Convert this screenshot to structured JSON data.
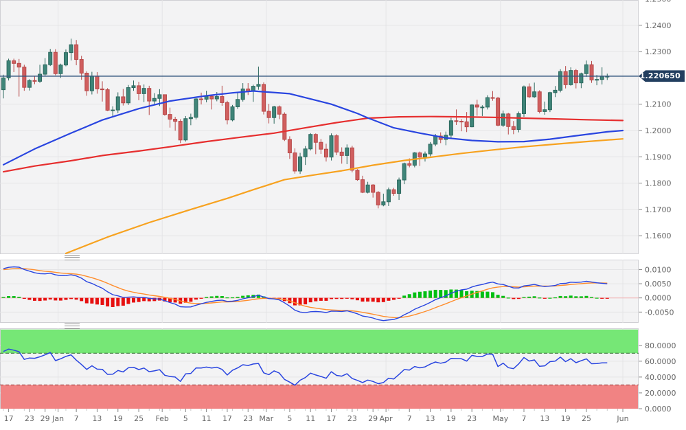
{
  "price_badge": {
    "label": "1.220650",
    "bg": "#223e5f"
  },
  "chart_data": [
    {
      "type": "candlestick",
      "panel": "price",
      "ylim": [
        1.153,
        1.2496
      ],
      "yticks": [
        1.25,
        1.24,
        1.23,
        1.22,
        1.21,
        1.2,
        1.19,
        1.18,
        1.17,
        1.16
      ],
      "label_skip": [
        1.22
      ],
      "current_price": 1.22065,
      "x_labels": [
        [
          "17",
          1
        ],
        [
          "23",
          5
        ],
        [
          "29",
          8
        ],
        [
          "Jan",
          10.5
        ],
        [
          "7",
          14
        ],
        [
          "13",
          18
        ],
        [
          "19",
          22
        ],
        [
          "25",
          26
        ],
        [
          "Feb",
          30.5
        ],
        [
          "5",
          35
        ],
        [
          "11",
          39
        ],
        [
          "17",
          43
        ],
        [
          "23",
          47
        ],
        [
          "Mar",
          50.5
        ],
        [
          "5",
          55
        ],
        [
          "11",
          59
        ],
        [
          "17",
          63
        ],
        [
          "23",
          67
        ],
        [
          "29",
          71
        ],
        [
          "Apr",
          73.5
        ],
        [
          "7",
          78
        ],
        [
          "13",
          82
        ],
        [
          "19",
          86
        ],
        [
          "23",
          90
        ],
        [
          "May",
          95.5
        ],
        [
          "7",
          100
        ],
        [
          "13",
          104
        ],
        [
          "19",
          108
        ],
        [
          "25",
          112
        ],
        [
          "Jun",
          119
        ]
      ],
      "month_gridline_indices": [
        10.5,
        30.5,
        50.5,
        73.5,
        95.5,
        119
      ],
      "colors": {
        "plot_bg": "#f3f3f4",
        "grid": "#e4e4e6",
        "panel_border": "#cfcfd3",
        "up_fill": "#3f8579",
        "up_stroke": "#2c685e",
        "down_fill": "#d05f5f",
        "down_stroke": "#b74848",
        "price_line": "#35577f",
        "axis_text": "#666666",
        "tick": "#888888",
        "minor_tick": "#c8c8c8"
      },
      "candles_ohlc": [
        [
          1.2155,
          1.2212,
          1.2122,
          1.22
        ],
        [
          1.22,
          1.2273,
          1.219,
          1.2265
        ],
        [
          1.2265,
          1.2273,
          1.2222,
          1.2255
        ],
        [
          1.2255,
          1.2272,
          1.2129,
          1.2241
        ],
        [
          1.2241,
          1.225,
          1.2151,
          1.2164
        ],
        [
          1.2164,
          1.2195,
          1.2152,
          1.219
        ],
        [
          1.219,
          1.2205,
          1.2176,
          1.2187
        ],
        [
          1.2187,
          1.225,
          1.2181,
          1.2214
        ],
        [
          1.2214,
          1.2275,
          1.2207,
          1.225
        ],
        [
          1.225,
          1.231,
          1.2245,
          1.2297
        ],
        [
          1.2297,
          1.2309,
          1.221,
          1.2216
        ],
        [
          1.2216,
          1.2254,
          1.22,
          1.2249
        ],
        [
          1.2249,
          1.2308,
          1.2244,
          1.2296
        ],
        [
          1.2296,
          1.2349,
          1.2266,
          1.2326
        ],
        [
          1.2326,
          1.2344,
          1.2248,
          1.227
        ],
        [
          1.227,
          1.2284,
          1.2193,
          1.2218
        ],
        [
          1.2218,
          1.2225,
          1.2132,
          1.2151
        ],
        [
          1.2151,
          1.2223,
          1.2137,
          1.2207
        ],
        [
          1.2207,
          1.2222,
          1.214,
          1.2158
        ],
        [
          1.2158,
          1.2187,
          1.211,
          1.2155
        ],
        [
          1.2155,
          1.2161,
          1.2074,
          1.2077
        ],
        [
          1.2077,
          1.2092,
          1.2054,
          1.2078
        ],
        [
          1.2078,
          1.2145,
          1.2066,
          1.2128
        ],
        [
          1.2128,
          1.2158,
          1.2095,
          1.2105
        ],
        [
          1.2105,
          1.2173,
          1.2097,
          1.2163
        ],
        [
          1.2163,
          1.219,
          1.2151,
          1.217
        ],
        [
          1.217,
          1.2185,
          1.2115,
          1.214
        ],
        [
          1.214,
          1.2175,
          1.2108,
          1.216
        ],
        [
          1.216,
          1.217,
          1.2059,
          1.2112
        ],
        [
          1.2112,
          1.2142,
          1.2096,
          1.2122
        ],
        [
          1.2122,
          1.2157,
          1.2093,
          1.2136
        ],
        [
          1.2136,
          1.2136,
          1.2056,
          1.2061
        ],
        [
          1.2061,
          1.2087,
          1.2011,
          1.2043
        ],
        [
          1.2043,
          1.2052,
          1.1999,
          1.2035
        ],
        [
          1.2035,
          1.2043,
          1.1952,
          1.1964
        ],
        [
          1.1964,
          1.2055,
          1.1958,
          1.2045
        ],
        [
          1.2045,
          1.2064,
          1.202,
          1.205
        ],
        [
          1.205,
          1.2123,
          1.2042,
          1.212
        ],
        [
          1.212,
          1.2144,
          1.2099,
          1.2119
        ],
        [
          1.2119,
          1.2151,
          1.2107,
          1.213
        ],
        [
          1.213,
          1.2137,
          1.208,
          1.212
        ],
        [
          1.212,
          1.2146,
          1.2111,
          1.2129
        ],
        [
          1.2129,
          1.217,
          1.2094,
          1.2106
        ],
        [
          1.2106,
          1.2113,
          1.2023,
          1.204
        ],
        [
          1.204,
          1.2097,
          1.2035,
          1.209
        ],
        [
          1.209,
          1.2145,
          1.2082,
          1.2118
        ],
        [
          1.2118,
          1.218,
          1.211,
          1.2158
        ],
        [
          1.2158,
          1.218,
          1.2135,
          1.215
        ],
        [
          1.215,
          1.2174,
          1.2109,
          1.2168
        ],
        [
          1.2168,
          1.2243,
          1.2155,
          1.2175
        ],
        [
          1.2175,
          1.2183,
          1.2061,
          1.2073
        ],
        [
          1.2073,
          1.2101,
          1.2027,
          1.2049
        ],
        [
          1.2049,
          1.2094,
          1.2026,
          1.209
        ],
        [
          1.209,
          1.2095,
          1.2043,
          1.2062
        ],
        [
          1.2062,
          1.2069,
          1.196,
          1.1966
        ],
        [
          1.1966,
          1.1978,
          1.1892,
          1.1915
        ],
        [
          1.1915,
          1.1932,
          1.1836,
          1.1846
        ],
        [
          1.1846,
          1.1915,
          1.1835,
          1.19
        ],
        [
          1.19,
          1.1941,
          1.1869,
          1.193
        ],
        [
          1.193,
          1.199,
          1.1924,
          1.1985
        ],
        [
          1.1985,
          1.1989,
          1.191,
          1.1955
        ],
        [
          1.1955,
          1.1968,
          1.1911,
          1.1929
        ],
        [
          1.1929,
          1.195,
          1.1882,
          1.1899
        ],
        [
          1.1899,
          1.1989,
          1.1886,
          1.198
        ],
        [
          1.198,
          1.1986,
          1.1906,
          1.1918
        ],
        [
          1.1918,
          1.1936,
          1.1874,
          1.1905
        ],
        [
          1.1905,
          1.1947,
          1.1872,
          1.1934
        ],
        [
          1.1934,
          1.1942,
          1.1841,
          1.1849
        ],
        [
          1.1849,
          1.1853,
          1.1809,
          1.1813
        ],
        [
          1.1813,
          1.1828,
          1.1762,
          1.1765
        ],
        [
          1.1765,
          1.1805,
          1.1761,
          1.1793
        ],
        [
          1.1793,
          1.1796,
          1.1745,
          1.1765
        ],
        [
          1.1765,
          1.177,
          1.1704,
          1.1717
        ],
        [
          1.1717,
          1.176,
          1.1712,
          1.1729
        ],
        [
          1.1729,
          1.1783,
          1.1713,
          1.1775
        ],
        [
          1.1775,
          1.1782,
          1.1752,
          1.1761
        ],
        [
          1.1761,
          1.1821,
          1.1736,
          1.1812
        ],
        [
          1.1812,
          1.1878,
          1.1796,
          1.1874
        ],
        [
          1.1874,
          1.1894,
          1.186,
          1.1868
        ],
        [
          1.1868,
          1.1918,
          1.186,
          1.1915
        ],
        [
          1.1915,
          1.192,
          1.1865,
          1.1899
        ],
        [
          1.1899,
          1.192,
          1.1882,
          1.1911
        ],
        [
          1.1911,
          1.1956,
          1.1902,
          1.1948
        ],
        [
          1.1948,
          1.1987,
          1.194,
          1.1979
        ],
        [
          1.1979,
          1.1993,
          1.1952,
          1.1966
        ],
        [
          1.1966,
          1.1996,
          1.1944,
          1.1982
        ],
        [
          1.1982,
          1.2048,
          1.1972,
          1.2037
        ],
        [
          1.2037,
          1.208,
          1.2021,
          1.2035
        ],
        [
          1.2035,
          1.2043,
          1.1997,
          1.2033
        ],
        [
          1.2033,
          1.207,
          1.1994,
          1.2014
        ],
        [
          1.2014,
          1.21,
          1.2012,
          1.2097
        ],
        [
          1.2097,
          1.2117,
          1.2056,
          1.2089
        ],
        [
          1.2089,
          1.2096,
          1.2055,
          1.2089
        ],
        [
          1.2089,
          1.2134,
          1.208,
          1.2125
        ],
        [
          1.2125,
          1.215,
          1.2113,
          1.2123
        ],
        [
          1.2123,
          1.2128,
          1.2016,
          1.202
        ],
        [
          1.202,
          1.2076,
          1.2013,
          1.2063
        ],
        [
          1.2063,
          1.2067,
          1.1985,
          1.2015
        ],
        [
          1.2015,
          1.2036,
          1.1986,
          1.2004
        ],
        [
          1.2004,
          1.2072,
          1.1993,
          1.2064
        ],
        [
          1.2064,
          1.2171,
          1.2052,
          1.2166
        ],
        [
          1.2166,
          1.2179,
          1.2123,
          1.2128
        ],
        [
          1.2128,
          1.2182,
          1.2124,
          1.2147
        ],
        [
          1.2147,
          1.2153,
          1.2065,
          1.2072
        ],
        [
          1.2072,
          1.211,
          1.206,
          1.2079
        ],
        [
          1.2079,
          1.2147,
          1.207,
          1.2144
        ],
        [
          1.2144,
          1.2169,
          1.2127,
          1.2153
        ],
        [
          1.2153,
          1.2233,
          1.2145,
          1.2224
        ],
        [
          1.2224,
          1.2245,
          1.216,
          1.2174
        ],
        [
          1.2174,
          1.224,
          1.217,
          1.2228
        ],
        [
          1.2228,
          1.2234,
          1.216,
          1.2181
        ],
        [
          1.2181,
          1.222,
          1.2161,
          1.2216
        ],
        [
          1.2216,
          1.2266,
          1.2204,
          1.225
        ],
        [
          1.225,
          1.2264,
          1.2181,
          1.2192
        ],
        [
          1.2192,
          1.2211,
          1.2172,
          1.2194
        ],
        [
          1.2194,
          1.224,
          1.2175,
          1.2206
        ],
        [
          1.2206,
          1.2216,
          1.2192,
          1.2206
        ]
      ],
      "indicator_warmup_closes": [
        1.164,
        1.172,
        1.1725,
        1.1825,
        1.1875,
        1.1815,
        1.181,
        1.1775,
        1.181,
        1.18,
        1.1855,
        1.1865,
        1.184,
        1.191,
        1.1963,
        1.1925,
        1.1965,
        1.2,
        1.207,
        1.2115,
        1.212,
        1.2106,
        1.214,
        1.2112,
        1.208,
        1.211,
        1.213,
        1.221,
        1.2155
      ],
      "overlays": [
        {
          "name": "ma-long-orange-line",
          "color": "#f7a21f",
          "points": [
            [
              12,
              1.1533
            ],
            [
              20,
              1.1595
            ],
            [
              28,
              1.165
            ],
            [
              36,
              1.17
            ],
            [
              43,
              1.1742
            ],
            [
              48,
              1.1775
            ],
            [
              54,
              1.1813
            ],
            [
              60,
              1.1832
            ],
            [
              65,
              1.1847
            ],
            [
              71,
              1.1868
            ],
            [
              77,
              1.1886
            ],
            [
              82,
              1.1898
            ],
            [
              88,
              1.1913
            ],
            [
              94,
              1.1926
            ],
            [
              100,
              1.1938
            ],
            [
              106,
              1.1948
            ],
            [
              112,
              1.1958
            ],
            [
              116,
              1.1964
            ],
            [
              119,
              1.1968
            ]
          ]
        },
        {
          "name": "ma-slow-red-line",
          "color": "#e62e2e",
          "points": [
            [
              0,
              1.1843
            ],
            [
              6,
              1.1865
            ],
            [
              13,
              1.1885
            ],
            [
              19,
              1.1905
            ],
            [
              26,
              1.1922
            ],
            [
              32,
              1.1938
            ],
            [
              39,
              1.1958
            ],
            [
              45,
              1.1973
            ],
            [
              52,
              1.199
            ],
            [
              58,
              1.201
            ],
            [
              64,
              1.203
            ],
            [
              70,
              1.2047
            ],
            [
              76,
              1.2052
            ],
            [
              82,
              1.2053
            ],
            [
              88,
              1.2052
            ],
            [
              94,
              1.205
            ],
            [
              100,
              1.2047
            ],
            [
              106,
              1.2044
            ],
            [
              112,
              1.2041
            ],
            [
              119,
              1.2038
            ]
          ]
        },
        {
          "name": "ma-fast-blue-line",
          "color": "#2945e0",
          "points": [
            [
              0,
              1.187
            ],
            [
              6,
              1.193
            ],
            [
              13,
              1.199
            ],
            [
              19,
              1.204
            ],
            [
              26,
              1.2083
            ],
            [
              32,
              1.2112
            ],
            [
              39,
              1.2132
            ],
            [
              44,
              1.2143
            ],
            [
              48,
              1.215
            ],
            [
              55,
              1.214
            ],
            [
              60,
              1.2115
            ],
            [
              63,
              1.21
            ],
            [
              68,
              1.2065
            ],
            [
              70,
              1.2048
            ],
            [
              75,
              1.201
            ],
            [
              80,
              1.199
            ],
            [
              85,
              1.1972
            ],
            [
              90,
              1.1962
            ],
            [
              95,
              1.1957
            ],
            [
              100,
              1.1958
            ],
            [
              105,
              1.1967
            ],
            [
              110,
              1.198
            ],
            [
              116,
              1.1995
            ],
            [
              119,
              1.2
            ]
          ]
        }
      ]
    },
    {
      "type": "macd",
      "panel": "macd",
      "params": {
        "fast": 12,
        "slow": 26,
        "signal": 9
      },
      "ylim": [
        -0.0088,
        0.0135
      ],
      "yticks": [
        0.01,
        0.005,
        0.0,
        -0.005
      ],
      "colors": {
        "macd": "#2945e0",
        "signal": "#ff8d2c",
        "hist_up": "#00bf12",
        "hist_down": "#e60f0f",
        "zero_line": "#f3b3b3"
      }
    },
    {
      "type": "rsi",
      "panel": "rsi",
      "period": 14,
      "ylim": [
        0,
        101.5
      ],
      "yticks": [
        80,
        60,
        40,
        20,
        0
      ],
      "color": "#2945e0",
      "bands": {
        "overbought": {
          "range": [
            70,
            100
          ],
          "fill": "#76e776",
          "edge": "#2e6b2e"
        },
        "oversold": {
          "range": [
            0,
            30
          ],
          "fill": "#f18383",
          "edge": "#8f2b2b"
        }
      }
    }
  ]
}
